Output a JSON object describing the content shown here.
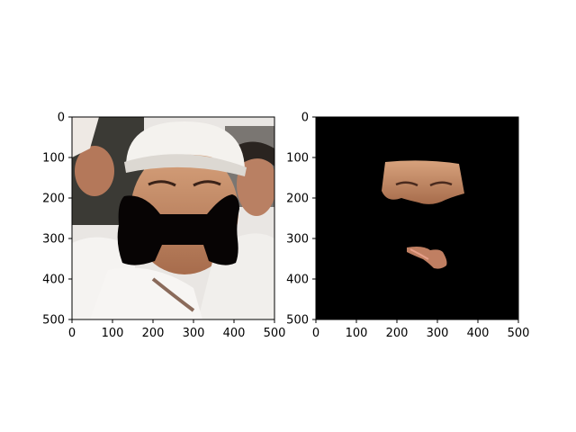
{
  "chart_data": [
    {
      "type": "image",
      "title": "",
      "xlabel": "",
      "ylabel": "",
      "xlim": [
        0,
        500
      ],
      "ylim": [
        500,
        0
      ],
      "x_ticks": [
        "0",
        "100",
        "200",
        "300",
        "400",
        "500"
      ],
      "y_ticks": [
        "0",
        "100",
        "200",
        "300",
        "400",
        "500"
      ],
      "content": "photo with black bow-tie shaped occlusion mask"
    },
    {
      "type": "image",
      "title": "",
      "xlabel": "",
      "ylabel": "",
      "xlim": [
        0,
        500
      ],
      "ylim": [
        500,
        0
      ],
      "x_ticks": [
        "0",
        "100",
        "200",
        "300",
        "400",
        "500"
      ],
      "y_ticks": [
        "0",
        "100",
        "200",
        "300",
        "400",
        "500"
      ],
      "content": "black background with visible skin regions (forehead/eyes and chin)"
    }
  ],
  "colors": {
    "mask": "#070404",
    "background_black": "#000000",
    "skin": "#c48a66",
    "white_cloth": "#f2f0ee"
  }
}
